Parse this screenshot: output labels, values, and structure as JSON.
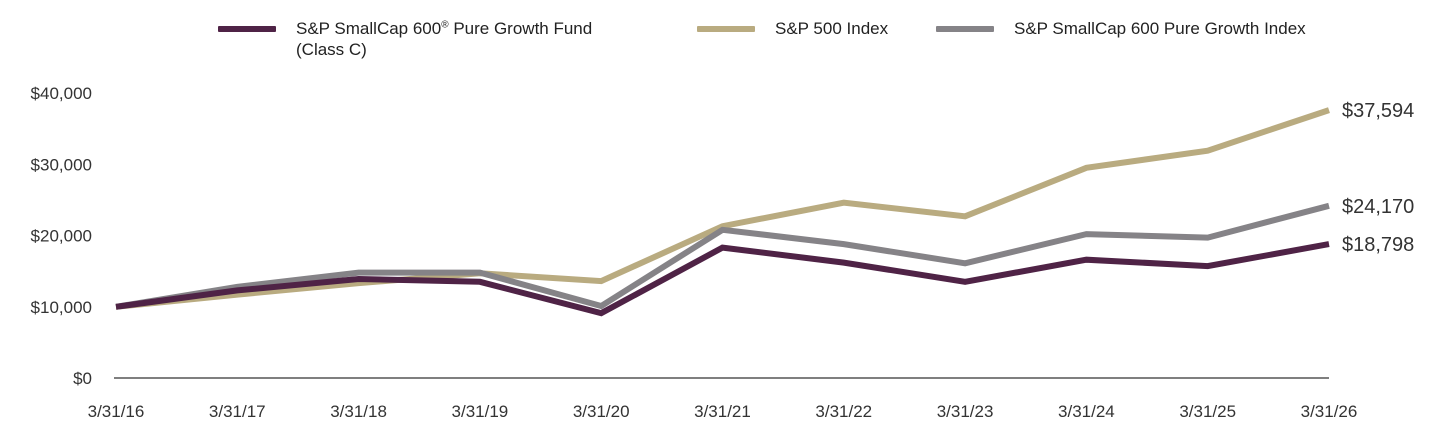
{
  "chart_data": {
    "type": "line",
    "categories": [
      "3/31/16",
      "3/31/17",
      "3/31/18",
      "3/31/19",
      "3/31/20",
      "3/31/21",
      "3/31/22",
      "3/31/23",
      "3/31/24",
      "3/31/25",
      "3/31/26"
    ],
    "ylim": [
      0,
      40000
    ],
    "yticks": [
      0,
      10000,
      20000,
      30000,
      40000
    ],
    "ytick_labels": [
      "$0",
      "$10,000",
      "$20,000",
      "$30,000",
      "$40,000"
    ],
    "grid": false,
    "legend_position": "top",
    "series": [
      {
        "name_main": "S&P SmallCap 600",
        "name_mark": "®",
        "name_rest": " Pure Growth Fund",
        "name_line2": "(Class C)",
        "color": "#4f2346",
        "values": [
          10000,
          12300,
          13900,
          13500,
          9100,
          18300,
          16200,
          13500,
          16600,
          15700,
          18798
        ],
        "end_label": "$18,798"
      },
      {
        "name": "S&P 500 Index",
        "color": "#b9ab80",
        "values": [
          10000,
          11700,
          13300,
          14700,
          13600,
          21300,
          24600,
          22700,
          29500,
          31900,
          37594
        ],
        "end_label": "$37,594"
      },
      {
        "name": "S&P SmallCap 600 Pure Growth Index",
        "color": "#858387",
        "values": [
          10000,
          12800,
          14800,
          14800,
          10100,
          20800,
          18800,
          16100,
          20200,
          19700,
          24170
        ],
        "end_label": "$24,170"
      }
    ]
  }
}
